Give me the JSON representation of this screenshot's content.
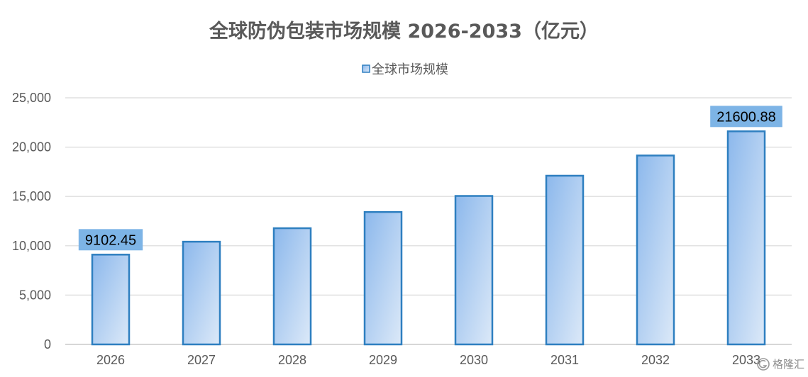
{
  "chart_data": {
    "type": "bar",
    "title": "全球防伪包装市场规模 2026-2033（亿元）",
    "categories": [
      "2026",
      "2027",
      "2028",
      "2029",
      "2030",
      "2031",
      "2032",
      "2033"
    ],
    "series": [
      {
        "name": "全球市场规模",
        "values": [
          9102.45,
          10410,
          11780,
          13420,
          15050,
          17100,
          19150,
          21600.88
        ]
      }
    ],
    "data_labels": [
      {
        "index": 0,
        "text": "9102.45"
      },
      {
        "index": 7,
        "text": "21600.88"
      }
    ],
    "ylim": [
      0,
      25000
    ],
    "yticks": [
      0,
      5000,
      10000,
      15000,
      20000,
      25000
    ],
    "ytick_labels": [
      "0",
      "5,000",
      "10,000",
      "15,000",
      "20,000",
      "25,000"
    ],
    "grid": true,
    "legend_position": "top-center",
    "colors": {
      "bar_fill_top": "#8cb8ec",
      "bar_fill_bottom": "#dce9f8",
      "bar_border": "#2e7fc0",
      "label_bg": "#7db4e6",
      "grid": "#d9d9d9",
      "axis": "#bfbfbf",
      "text": "#595959"
    }
  },
  "watermark": {
    "icon": "gezhi-logo-icon",
    "text": "格隆汇"
  }
}
